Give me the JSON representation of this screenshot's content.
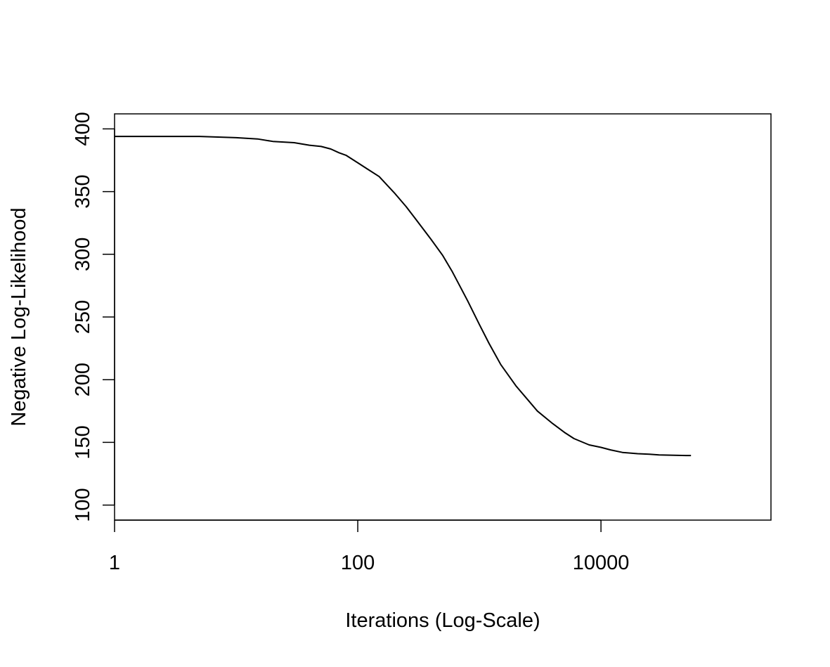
{
  "chart_data": {
    "type": "line",
    "title": "",
    "xlabel": "Iterations (Log-Scale)",
    "ylabel": "Negative Log-Likelihood",
    "x_scale": "log10",
    "xlim": [
      1,
      250000
    ],
    "ylim": [
      88,
      412
    ],
    "x_ticks": [
      {
        "value": 1,
        "label": "1"
      },
      {
        "value": 100,
        "label": "100"
      },
      {
        "value": 10000,
        "label": "10000"
      }
    ],
    "y_ticks": [
      {
        "value": 100,
        "label": "100"
      },
      {
        "value": 150,
        "label": "150"
      },
      {
        "value": 200,
        "label": "200"
      },
      {
        "value": 250,
        "label": "250"
      },
      {
        "value": 300,
        "label": "300"
      },
      {
        "value": 350,
        "label": "350"
      },
      {
        "value": 400,
        "label": "400"
      }
    ],
    "grid": false,
    "legend": "none",
    "line_color": "#000000",
    "series": [
      {
        "x": [
          1,
          2,
          5,
          10,
          15,
          20,
          30,
          40,
          50,
          60,
          70,
          80,
          100,
          120,
          150,
          200,
          250,
          300,
          400,
          500,
          600,
          800,
          1000,
          1200,
          1500,
          2000,
          2500,
          3000,
          4000,
          5000,
          6000,
          8000,
          10000,
          12000,
          15000,
          20000,
          25000,
          30000,
          40000,
          50000,
          55000
        ],
        "y": [
          394,
          394,
          394,
          393,
          392,
          390,
          389,
          387,
          386,
          384,
          381,
          379,
          373,
          368,
          362,
          349,
          338,
          328,
          312,
          299,
          286,
          263,
          244,
          229,
          212,
          195,
          184,
          175,
          165,
          158,
          153,
          148,
          146,
          144,
          142,
          141,
          140.5,
          140,
          139.7,
          139.5,
          139.5
        ]
      }
    ]
  }
}
